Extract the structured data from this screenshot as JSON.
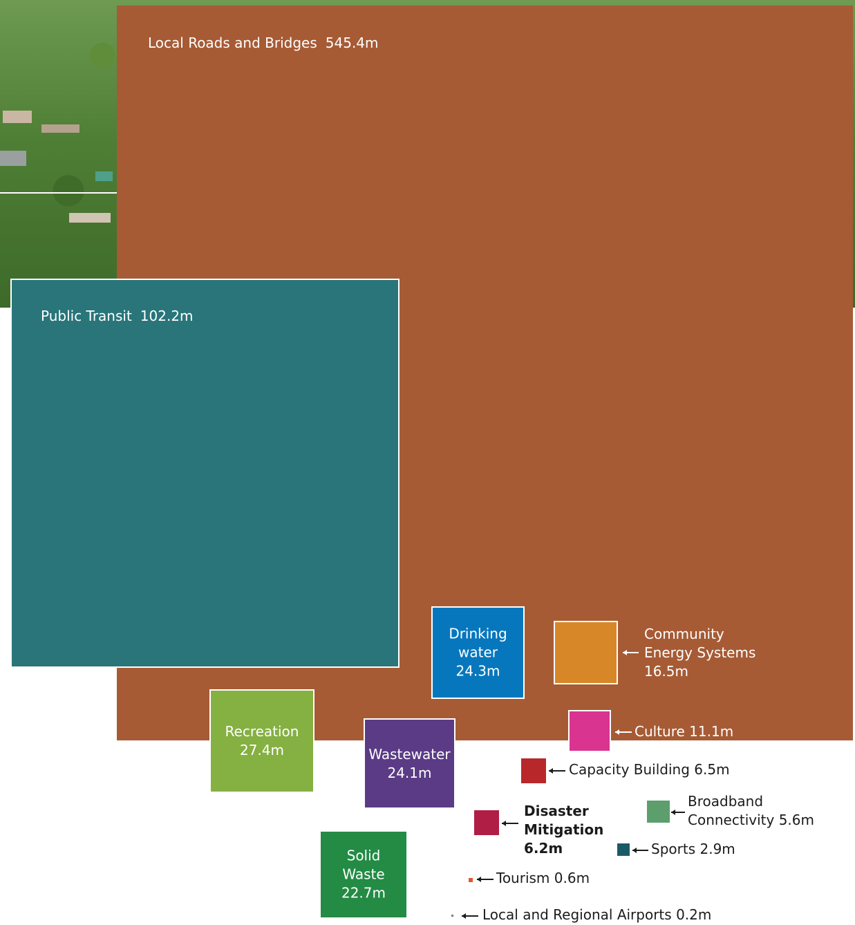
{
  "chart_data": {
    "type": "treemap",
    "unit": "m",
    "items": [
      {
        "id": "roads",
        "label": "Local Roads and Bridges",
        "value_label": "545.4m",
        "value": 545.4,
        "color": "#a65b35"
      },
      {
        "id": "transit",
        "label": "Public Transit",
        "value_label": "102.2m",
        "value": 102.2,
        "color": "#29757a"
      },
      {
        "id": "recreation",
        "label": "Recreation",
        "value_label": "27.4m",
        "value": 27.4,
        "color": "#85b042"
      },
      {
        "id": "drinking",
        "label": "Drinking water",
        "value_label": "24.3m",
        "value": 24.3,
        "color": "#0777bd"
      },
      {
        "id": "wastewater",
        "label": "Wastewater",
        "value_label": "24.1m",
        "value": 24.1,
        "color": "#5b3b85"
      },
      {
        "id": "solid",
        "label": "Solid Waste",
        "value_label": "22.7m",
        "value": 22.7,
        "color": "#238b44"
      },
      {
        "id": "energy",
        "label": "Community Energy Systems",
        "value_label": "16.5m",
        "value": 16.5,
        "color": "#d88728"
      },
      {
        "id": "culture",
        "label": "Culture",
        "value_label": "11.1m",
        "value": 11.1,
        "color": "#d93490"
      },
      {
        "id": "capacity",
        "label": "Capacity Building",
        "value_label": "6.5m",
        "value": 6.5,
        "color": "#b8282a"
      },
      {
        "id": "disaster",
        "label": "Disaster Mitigation",
        "value_label": "6.2m",
        "value": 6.2,
        "color": "#b01e45"
      },
      {
        "id": "broadband",
        "label": "Broadband Connectivity",
        "value_label": "5.6m",
        "value": 5.6,
        "color": "#5c9e6c"
      },
      {
        "id": "sports",
        "label": "Sports",
        "value_label": "2.9m",
        "value": 2.9,
        "color": "#1a5a65"
      },
      {
        "id": "tourism",
        "label": "Tourism",
        "value_label": "0.6m",
        "value": 0.6,
        "color": "#e2562c"
      },
      {
        "id": "airports",
        "label": "Local and Regional Airports",
        "value_label": "0.2m",
        "value": 0.2,
        "color": "#7a7a7a"
      }
    ]
  }
}
